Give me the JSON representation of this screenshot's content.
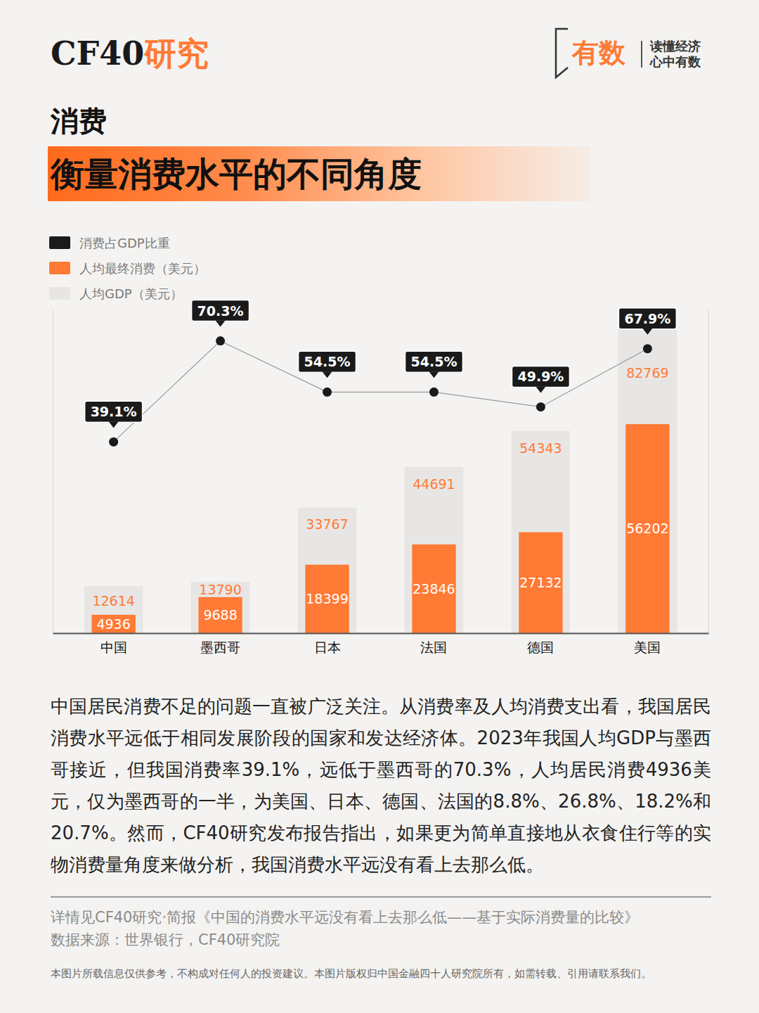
{
  "page": {
    "brand": [
      "CF40",
      "研究"
    ],
    "logo": {
      "name": "有数",
      "slogan": [
        "读懂经济",
        "心中有数"
      ]
    },
    "body": "中国居民消费不足的问题一直被广泛关注。从消费率及人均消费支出看，我国居民消费水平远低于相同发展阶段的国家和发达经济体。2023年我国人均GDP与墨西哥接近，但我国消费率39.1%，远低于墨西哥的70.3%，人均居民消费4936美元，仅为墨西哥的一半，为美国、日本、德国、法国的8.8%、26.8%、18.2%和20.7%。然而，CF40研究发布报告指出，如果更为简单直接地从衣食住行等的实物消费量角度来做分析，我国消费水平远没有看上去那么低。",
    "source_note": "详情见CF40研究·简报《中国的消费水平远没有看上去那么低——基于实际消费量的比较》",
    "data_source": "数据来源：世界银行，CF40研究院",
    "disclaimer": "本图片所载信息仅供参考，不构成对任何人的投资建议。本图片版权归中国金融四十人研究院所有，如需转载、引用请联系我们。"
  },
  "chart_data": {
    "type": "bar",
    "subtitle": "消费",
    "title": "衡量消费水平的不同角度",
    "categories": [
      "中国",
      "墨西哥",
      "日本",
      "法国",
      "德国",
      "美国"
    ],
    "series": [
      {
        "name": "消费占GDP比重",
        "type": "line",
        "axis": "y2",
        "color": "#1a1a1a",
        "marker": "circle",
        "values": [
          39.1,
          70.3,
          54.5,
          54.5,
          49.9,
          67.9
        ],
        "value_labels": [
          "39.1%",
          "70.3%",
          "54.5%",
          "54.5%",
          "49.9%",
          "67.9%"
        ]
      },
      {
        "name": "人均最终消费（美元）",
        "type": "bar",
        "color": "#ff7a35",
        "values": [
          4936,
          9688,
          18399,
          23846,
          27132,
          56202
        ]
      },
      {
        "name": "人均GDP（美元）",
        "type": "bar",
        "color": "#e8e6e5",
        "values": [
          12614,
          13790,
          33767,
          44691,
          54343,
          82769
        ]
      }
    ],
    "ylim": [
      0,
      87000
    ],
    "y2lim": [
      -20,
      80
    ],
    "tick_labels": false,
    "grid": false,
    "data_labels": true,
    "legend": "top-left"
  }
}
